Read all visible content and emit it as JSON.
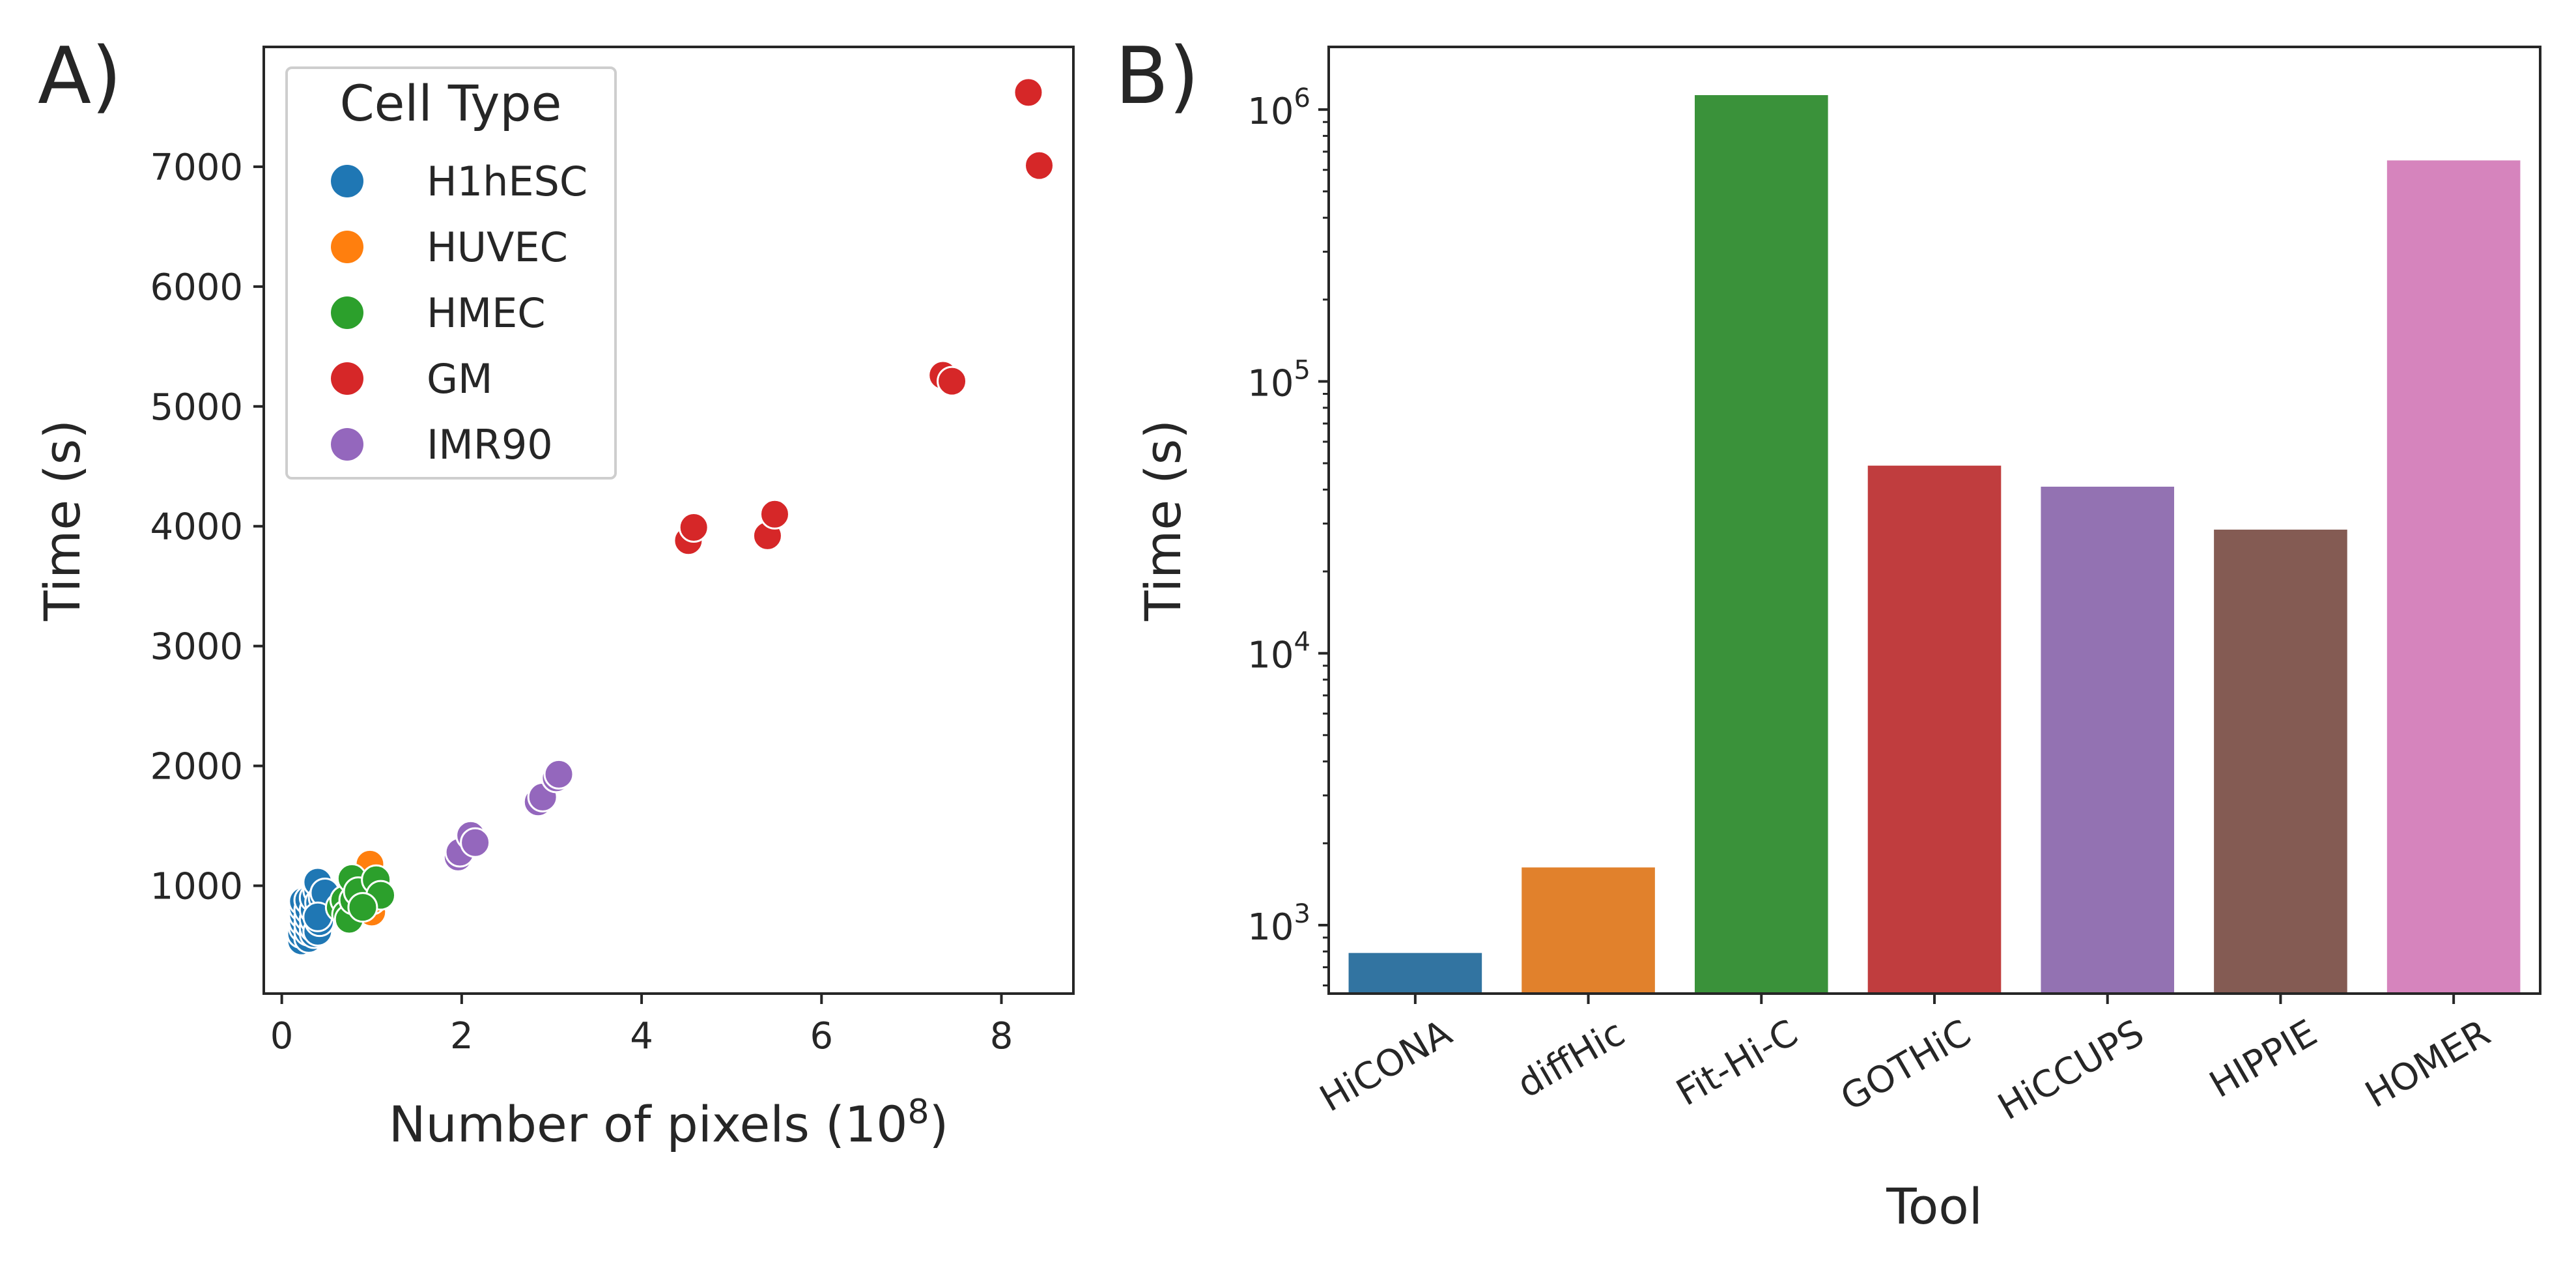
{
  "chart_data": [
    {
      "panel": "A)",
      "type": "scatter",
      "xlabel": "Number of pixels (10",
      "xlabel_sup": "8",
      "xlabel_close": ")",
      "ylabel": "Time (s)",
      "xlim": [
        -0.2,
        8.8
      ],
      "ylim": [
        100,
        8000
      ],
      "xticks": [
        0,
        2,
        4,
        6,
        8
      ],
      "yticks": [
        1000,
        2000,
        3000,
        4000,
        5000,
        6000,
        7000
      ],
      "grid": false,
      "legend": {
        "title": "Cell Type",
        "position": "top-left"
      },
      "series": [
        {
          "name": "H1hESC",
          "color": "#1f77b4",
          "points": [
            [
              0.22,
              540
            ],
            [
              0.22,
              600
            ],
            [
              0.24,
              650
            ],
            [
              0.24,
              700
            ],
            [
              0.24,
              760
            ],
            [
              0.24,
              820
            ],
            [
              0.24,
              870
            ],
            [
              0.3,
              560
            ],
            [
              0.3,
              620
            ],
            [
              0.3,
              680
            ],
            [
              0.3,
              740
            ],
            [
              0.3,
              800
            ],
            [
              0.3,
              880
            ],
            [
              0.36,
              600
            ],
            [
              0.36,
              650
            ],
            [
              0.36,
              720
            ],
            [
              0.36,
              800
            ],
            [
              0.36,
              900
            ],
            [
              0.4,
              960
            ],
            [
              0.4,
              1030
            ],
            [
              0.4,
              620
            ],
            [
              0.42,
              700
            ],
            [
              0.42,
              780
            ],
            [
              0.42,
              860
            ],
            [
              0.46,
              900
            ],
            [
              0.48,
              940
            ],
            [
              0.4,
              740
            ]
          ]
        },
        {
          "name": "HUVEC",
          "color": "#ff7f0e",
          "points": [
            [
              0.95,
              880
            ],
            [
              0.98,
              830
            ],
            [
              1.0,
              780
            ],
            [
              1.02,
              900
            ],
            [
              0.98,
              1180
            ],
            [
              1.0,
              880
            ]
          ]
        },
        {
          "name": "HMEC",
          "color": "#2ca02c",
          "points": [
            [
              0.65,
              820
            ],
            [
              0.7,
              880
            ],
            [
              0.72,
              760
            ],
            [
              0.75,
              720
            ],
            [
              0.78,
              1060
            ],
            [
              0.8,
              880
            ],
            [
              0.85,
              950
            ],
            [
              1.05,
              1050
            ],
            [
              1.1,
              920
            ],
            [
              0.9,
              820
            ]
          ]
        },
        {
          "name": "GM",
          "color": "#d62728",
          "points": [
            [
              4.52,
              3880
            ],
            [
              4.58,
              3990
            ],
            [
              5.4,
              3920
            ],
            [
              5.48,
              4100
            ],
            [
              7.35,
              5260
            ],
            [
              7.45,
              5210
            ],
            [
              8.3,
              7620
            ],
            [
              8.42,
              7010
            ]
          ]
        },
        {
          "name": "IMR90",
          "color": "#9467bd",
          "points": [
            [
              1.96,
              1240
            ],
            [
              1.98,
              1280
            ],
            [
              2.1,
              1420
            ],
            [
              2.15,
              1360
            ],
            [
              2.85,
              1700
            ],
            [
              2.9,
              1740
            ],
            [
              3.05,
              1900
            ],
            [
              3.08,
              1930
            ]
          ]
        }
      ]
    },
    {
      "panel": "B)",
      "type": "bar",
      "xlabel": "Tool",
      "ylabel": "Time (s)",
      "yscale": "log",
      "ylim": [
        560,
        1700000
      ],
      "yticks": [
        1000,
        10000,
        100000,
        1000000
      ],
      "ytick_labels": [
        {
          "base": "10",
          "exp": "3"
        },
        {
          "base": "10",
          "exp": "4"
        },
        {
          "base": "10",
          "exp": "5"
        },
        {
          "base": "10",
          "exp": "6"
        }
      ],
      "grid": false,
      "categories": [
        "HiCONA",
        "diffHic",
        "Fit-Hi-C",
        "GOTHiC",
        "HiCCUPS",
        "HIPPIE",
        "HOMER"
      ],
      "values": [
        790,
        1630,
        1130000,
        49000,
        41000,
        28500,
        650000
      ],
      "colors": [
        "#3274a1",
        "#e1812c",
        "#3a923a",
        "#c03d3e",
        "#9372b2",
        "#845b53",
        "#d684bd"
      ]
    }
  ]
}
